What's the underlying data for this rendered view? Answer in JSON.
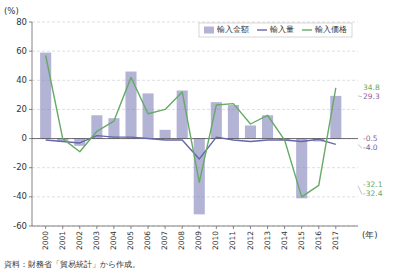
{
  "chart_data": {
    "type": "bar",
    "x": [
      2000,
      2001,
      2002,
      2003,
      2004,
      2005,
      2006,
      2007,
      2008,
      2009,
      2010,
      2011,
      2012,
      2013,
      2014,
      2015,
      2016,
      2017
    ],
    "series": [
      {
        "name": "輸入金額",
        "type": "bar",
        "color": "#8080bb",
        "values": [
          59,
          -2,
          -5,
          16,
          14,
          46,
          31,
          6,
          33,
          -52,
          25,
          23,
          9,
          16,
          -1,
          -41,
          -2,
          29.3
        ]
      },
      {
        "name": "輸入量",
        "type": "line",
        "color": "#6666aa",
        "values": [
          -1,
          -2,
          -3,
          2,
          1,
          1,
          0,
          -1,
          -1,
          -14,
          1,
          -1,
          -2,
          -1,
          -1,
          -2,
          -0.5,
          -4.0
        ]
      },
      {
        "name": "輸入価格",
        "type": "line",
        "color": "#66aa66",
        "values": [
          57,
          0,
          -9,
          5,
          12,
          42,
          17,
          20,
          32,
          -30,
          23,
          24,
          10,
          16,
          -1,
          -40,
          -32.1,
          34.8
        ]
      }
    ],
    "xlim": [
      1999.2,
      2018.3
    ],
    "xticks": [
      2000,
      2001,
      2002,
      2003,
      2004,
      2005,
      2006,
      2007,
      2008,
      2009,
      2010,
      2011,
      2012,
      2013,
      2014,
      2015,
      2016,
      2017
    ],
    "ylim": [
      -60,
      80
    ],
    "yticks": [
      -60,
      -40,
      -20,
      0,
      20,
      40,
      60,
      80
    ],
    "ylabel": "(%)",
    "xlabel": "(年)",
    "source": "資料：財務省「貿易統計」から作成。",
    "grid": true,
    "legend": "upper right",
    "annotations": [
      {
        "text": "34.8",
        "y": 34.8,
        "color": "#66aa66"
      },
      {
        "text": "29.3",
        "y": 29.3,
        "color": "#9060a0"
      },
      {
        "text": "-0.5",
        "y": -0.5,
        "color": "#9060a0"
      },
      {
        "text": "-4.0",
        "y": -4.0,
        "color": "#6666aa"
      },
      {
        "text": "-32.4",
        "y": -32.4,
        "color": "#66aa66"
      },
      {
        "text": "-32.1",
        "y": -32.1,
        "color": "#66aa66"
      }
    ]
  }
}
